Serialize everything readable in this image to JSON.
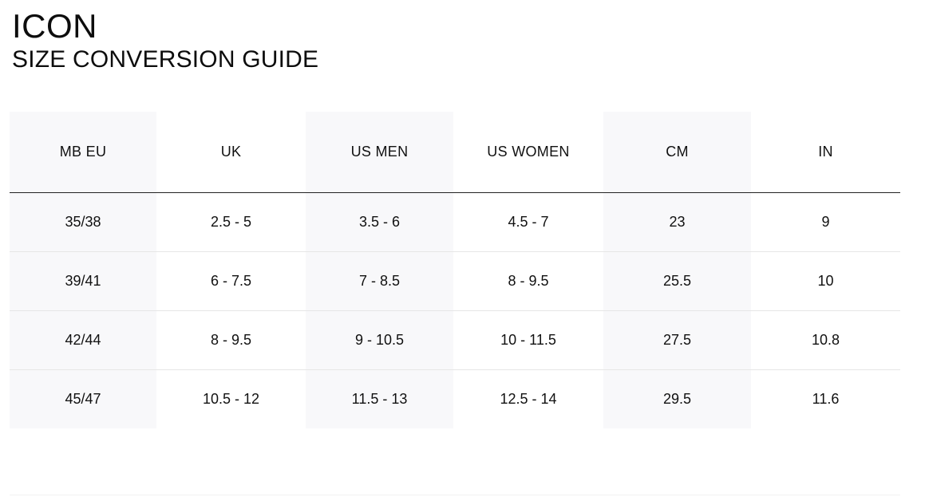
{
  "header": {
    "brand": "ICON",
    "title": "SIZE CONVERSION GUIDE"
  },
  "table": {
    "columns": [
      "MB EU",
      "UK",
      "US MEN",
      "US WOMEN",
      "CM",
      "IN"
    ],
    "rows": [
      [
        "35/38",
        "2.5 - 5",
        "3.5 - 6",
        "4.5 - 7",
        "23",
        "9"
      ],
      [
        "39/41",
        "6 - 7.5",
        "7 - 8.5",
        "8 - 9.5",
        "25.5",
        "10"
      ],
      [
        "42/44",
        "8 - 9.5",
        "9 - 10.5",
        "10 - 11.5",
        "27.5",
        "10.8"
      ],
      [
        "45/47",
        "10.5 - 12",
        "11.5 - 13",
        "12.5 - 14",
        "29.5",
        "11.6"
      ]
    ],
    "shaded_columns_color": "#f8f8fa",
    "header_rule_color": "#222222",
    "row_divider_color": "#e6e6e6"
  }
}
